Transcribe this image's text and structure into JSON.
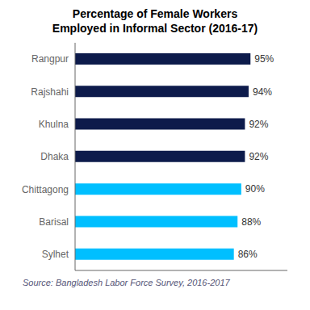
{
  "chart_data": {
    "type": "bar",
    "title": "Percentage of Female Workers\nEmployed in Informal Sector (2016-17)",
    "categories": [
      "Rangpur",
      "Rajshahi",
      "Khulna",
      "Dhaka",
      "Chittagong",
      "Barisal",
      "Sylhet"
    ],
    "values": [
      95,
      94,
      92,
      92,
      90,
      88,
      86
    ],
    "value_labels": [
      "95%",
      "94%",
      "92%",
      "92%",
      "90%",
      "88%",
      "86%"
    ],
    "colors": [
      "#0d1b4b",
      "#0d1b4b",
      "#0d1b4b",
      "#0d1b4b",
      "#00bfff",
      "#00bfff",
      "#00bfff"
    ],
    "orientation": "horizontal",
    "data_labels": true,
    "tick_labels": "y",
    "grid": false,
    "xlim": [
      0,
      115
    ],
    "annotations": [
      "Source:  Bangladesh Labor Force Survey, 2016-2017"
    ]
  }
}
